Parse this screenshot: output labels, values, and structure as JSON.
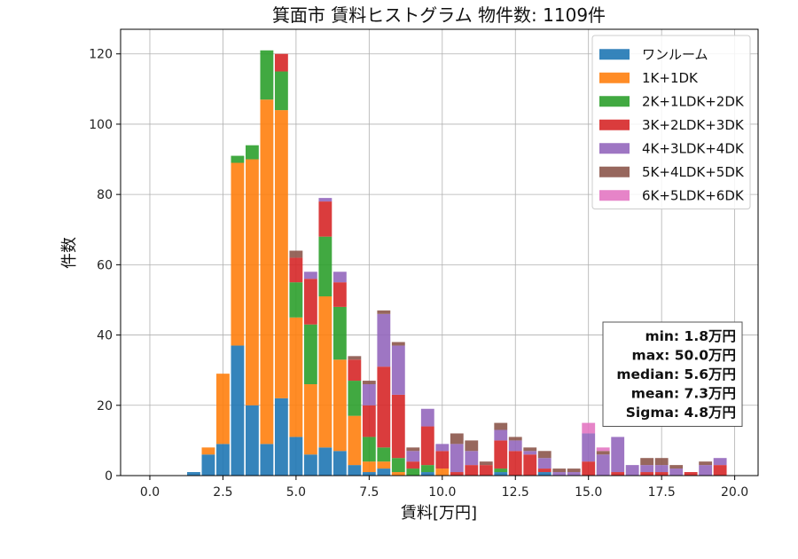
{
  "chart_data": {
    "type": "bar",
    "stacked": true,
    "title": "箕面市 賃料ヒストグラム 物件数: 1109件",
    "xlabel": "賃料[万円]",
    "ylabel": "件数",
    "xlim": [
      -1.0,
      20.8
    ],
    "ylim": [
      0,
      127
    ],
    "xticks": [
      0.0,
      2.5,
      5.0,
      7.5,
      10.0,
      12.5,
      15.0,
      17.5,
      20.0
    ],
    "xtick_labels": [
      "0.0",
      "2.5",
      "5.0",
      "7.5",
      "10.0",
      "12.5",
      "15.0",
      "17.5",
      "20.0"
    ],
    "yticks": [
      0,
      20,
      40,
      60,
      80,
      100,
      120
    ],
    "ytick_labels": [
      "0",
      "20",
      "40",
      "60",
      "80",
      "100",
      "120"
    ],
    "grid": true,
    "legend_position": "top-right",
    "bin_width": 0.5,
    "x": [
      1.5,
      2.0,
      2.5,
      3.0,
      3.5,
      4.0,
      4.5,
      5.0,
      5.5,
      6.0,
      6.5,
      7.0,
      7.5,
      8.0,
      8.5,
      9.0,
      9.5,
      10.0,
      10.5,
      11.0,
      11.5,
      12.0,
      12.5,
      13.0,
      13.5,
      14.0,
      14.5,
      15.0,
      15.5,
      16.0,
      16.5,
      17.0,
      17.5,
      18.0,
      18.5,
      19.0,
      19.5
    ],
    "series": [
      {
        "name": "ワンルーム",
        "color": "#1f77b4",
        "values": [
          1,
          6,
          9,
          37,
          20,
          9,
          22,
          11,
          6,
          8,
          7,
          3,
          1,
          2,
          0,
          0,
          1,
          0,
          0,
          0,
          0,
          1,
          0,
          0,
          1,
          0,
          0,
          0,
          0,
          0,
          0,
          0,
          0,
          0,
          0,
          0,
          0
        ]
      },
      {
        "name": "1K+1DK",
        "color": "#ff7f0e",
        "values": [
          0,
          2,
          20,
          52,
          70,
          98,
          82,
          34,
          20,
          43,
          26,
          14,
          3,
          2,
          1,
          0,
          0,
          2,
          0,
          0,
          0,
          0,
          0,
          0,
          0,
          0,
          0,
          0,
          0,
          0,
          0,
          0,
          0,
          0,
          0,
          0,
          0
        ]
      },
      {
        "name": "2K+1LDK+2DK",
        "color": "#2ca02c",
        "values": [
          0,
          0,
          0,
          2,
          4,
          14,
          11,
          10,
          17,
          17,
          15,
          10,
          7,
          4,
          4,
          2,
          2,
          0,
          0,
          0,
          0,
          1,
          0,
          0,
          0,
          0,
          0,
          0,
          0,
          0,
          0,
          0,
          0,
          0,
          0,
          0,
          0
        ]
      },
      {
        "name": "3K+2LDK+3DK",
        "color": "#d62728",
        "values": [
          0,
          0,
          0,
          0,
          0,
          0,
          5,
          7,
          13,
          10,
          7,
          6,
          9,
          23,
          18,
          2,
          11,
          5,
          1,
          3,
          3,
          8,
          7,
          6,
          1,
          0,
          0,
          4,
          0,
          1,
          0,
          1,
          1,
          0,
          1,
          0,
          3
        ]
      },
      {
        "name": "4K+3LDK+4DK",
        "color": "#9467bd",
        "values": [
          0,
          0,
          0,
          0,
          0,
          0,
          0,
          0,
          2,
          1,
          3,
          0,
          6,
          15,
          14,
          3,
          5,
          2,
          8,
          4,
          0,
          3,
          3,
          1,
          3,
          1,
          1,
          8,
          6,
          10,
          3,
          2,
          2,
          2,
          0,
          3,
          2
        ]
      },
      {
        "name": "5K+4LDK+5DK",
        "color": "#8c564b",
        "values": [
          0,
          0,
          0,
          0,
          0,
          0,
          0,
          2,
          0,
          0,
          0,
          1,
          1,
          1,
          1,
          1,
          0,
          0,
          3,
          3,
          1,
          2,
          1,
          1,
          2,
          1,
          1,
          0,
          1,
          0,
          0,
          2,
          2,
          1,
          0,
          1,
          0
        ]
      },
      {
        "name": "6K+5LDK+6DK",
        "color": "#e377c2",
        "values": [
          0,
          0,
          0,
          0,
          0,
          0,
          0,
          0,
          0,
          0,
          0,
          0,
          0,
          0,
          0,
          0,
          0,
          0,
          0,
          0,
          0,
          0,
          0,
          0,
          0,
          0,
          0,
          3,
          1,
          0,
          0,
          0,
          0,
          0,
          0,
          0,
          0
        ]
      }
    ],
    "stats": [
      "min: 1.8万円",
      "max: 50.0万円",
      "median: 5.6万円",
      "mean: 7.3万円",
      "Sigma: 4.8万円"
    ]
  }
}
